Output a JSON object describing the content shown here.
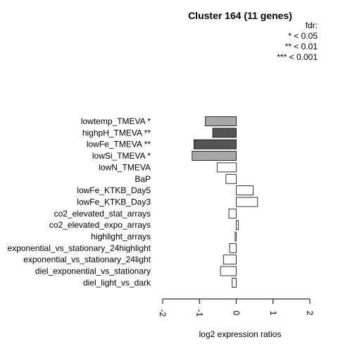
{
  "chart_data": {
    "type": "bar",
    "orientation": "horizontal",
    "title": "Cluster 164 (11 genes)",
    "xlabel": "log2 expression ratios",
    "ylabel": "",
    "xlim": [
      -2,
      2
    ],
    "xticks": [
      "-2",
      "-1",
      "0",
      "1",
      "2"
    ],
    "grid": false,
    "legend": {
      "placement": "top-right",
      "title": "fdr:",
      "entries": [
        "* < 0.05",
        "** < 0.01",
        "*** < 0.001"
      ]
    },
    "categories": [
      "lowtemp_TMEVA *",
      "highpH_TMEVA **",
      "lowFe_TMEVA **",
      "lowSi_TMEVA *",
      "lowN_TMEVA",
      "BaP",
      "lowFe_KTKB_Day5",
      "lowFe_KTKB_Day3",
      "co2_elevated_stat_arrays",
      "co2_elevated_expo_arrays",
      "highlight_arrays",
      "exponential_vs_stationary_24highlight",
      "exponential_vs_stationary_24light",
      "diel_exponential_vs_stationary",
      "diel_light_vs_dark"
    ],
    "values": [
      -0.84,
      -0.64,
      -1.15,
      -1.2,
      -0.52,
      -0.28,
      0.46,
      0.58,
      -0.2,
      0.06,
      -0.03,
      -0.18,
      -0.35,
      -0.43,
      -0.11
    ],
    "colors": [
      "#a8a8a8",
      "#545454",
      "#545454",
      "#a8a8a8",
      "#ffffff",
      "#ffffff",
      "#ffffff",
      "#ffffff",
      "#ffffff",
      "#ffffff",
      "#ffffff",
      "#ffffff",
      "#ffffff",
      "#ffffff",
      "#ffffff"
    ]
  }
}
